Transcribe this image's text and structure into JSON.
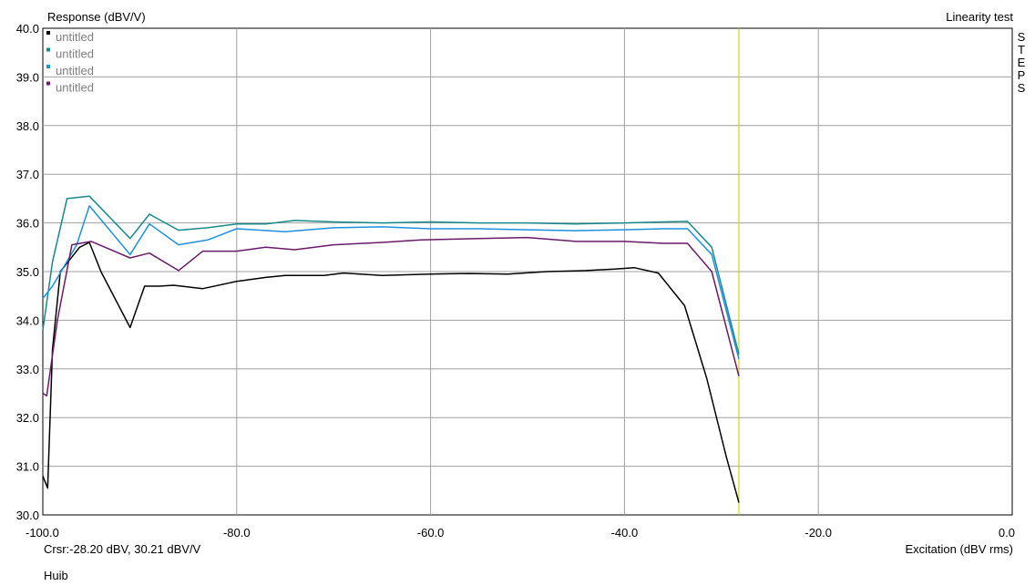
{
  "chart_data": {
    "type": "line",
    "title": "Linearity test",
    "ylabel": "Response (dBV/V)",
    "xlabel": "Excitation (dBV rms)",
    "side_label": "STEPS",
    "cursor_readout": "Crsr:-28.20 dBV, 30.21 dBV/V",
    "author": "Huib",
    "xlim": [
      -100,
      0
    ],
    "ylim": [
      30,
      40
    ],
    "x_ticks": [
      "-100.0",
      "-80.0",
      "-60.0",
      "-40.0",
      "-20.0",
      "0.0"
    ],
    "x_tick_values": [
      -100,
      -80,
      -60,
      -40,
      -20,
      0
    ],
    "y_ticks": [
      "30.0",
      "31.0",
      "32.0",
      "33.0",
      "34.0",
      "35.0",
      "36.0",
      "37.0",
      "38.0",
      "39.0",
      "40.0"
    ],
    "y_tick_values": [
      30,
      31,
      32,
      33,
      34,
      35,
      36,
      37,
      38,
      39,
      40
    ],
    "grid": true,
    "legend_position": "top-left",
    "cursor_x": -28.2,
    "colors": {
      "background": "#ffffff",
      "grid": "#a0a0a0",
      "cursor": "#c8c800",
      "legend_text": "#808080"
    },
    "series": [
      {
        "name": "untitled",
        "color": "#000000",
        "points": [
          [
            -100,
            30.8
          ],
          [
            -99.5,
            30.55
          ],
          [
            -99,
            33.4
          ],
          [
            -98.2,
            35.0
          ],
          [
            -96.2,
            35.5
          ],
          [
            -95.2,
            35.6
          ],
          [
            -94,
            35.0
          ],
          [
            -91,
            33.85
          ],
          [
            -89.5,
            34.7
          ],
          [
            -88,
            34.7
          ],
          [
            -86.5,
            34.72
          ],
          [
            -83.5,
            34.65
          ],
          [
            -80,
            34.8
          ],
          [
            -77,
            34.88
          ],
          [
            -75,
            34.92
          ],
          [
            -71,
            34.92
          ],
          [
            -69,
            34.97
          ],
          [
            -65,
            34.92
          ],
          [
            -60,
            34.95
          ],
          [
            -56,
            34.96
          ],
          [
            -52,
            34.95
          ],
          [
            -48,
            35.0
          ],
          [
            -44,
            35.02
          ],
          [
            -41,
            35.05
          ],
          [
            -39,
            35.08
          ],
          [
            -36.5,
            34.97
          ],
          [
            -33.8,
            34.3
          ],
          [
            -31.5,
            32.8
          ],
          [
            -29.5,
            31.2
          ],
          [
            -28.2,
            30.25
          ]
        ]
      },
      {
        "name": "untitled",
        "color": "#168a8a",
        "points": [
          [
            -100,
            33.8
          ],
          [
            -99,
            35.2
          ],
          [
            -97.5,
            36.5
          ],
          [
            -95.2,
            36.55
          ],
          [
            -91,
            35.68
          ],
          [
            -89,
            36.18
          ],
          [
            -86,
            35.85
          ],
          [
            -83,
            35.9
          ],
          [
            -80,
            35.98
          ],
          [
            -77,
            35.98
          ],
          [
            -74,
            36.05
          ],
          [
            -70,
            36.02
          ],
          [
            -65,
            36.0
          ],
          [
            -60,
            36.02
          ],
          [
            -55,
            36.0
          ],
          [
            -50,
            36.0
          ],
          [
            -45,
            35.98
          ],
          [
            -40,
            36.0
          ],
          [
            -36,
            36.02
          ],
          [
            -33.5,
            36.03
          ],
          [
            -31,
            35.5
          ],
          [
            -28.2,
            33.3
          ]
        ]
      },
      {
        "name": "untitled",
        "color": "#1e90e0",
        "points": [
          [
            -100,
            34.45
          ],
          [
            -99,
            34.7
          ],
          [
            -96.5,
            35.55
          ],
          [
            -95.2,
            36.35
          ],
          [
            -91,
            35.35
          ],
          [
            -89,
            35.98
          ],
          [
            -86,
            35.55
          ],
          [
            -83,
            35.65
          ],
          [
            -80,
            35.88
          ],
          [
            -75,
            35.82
          ],
          [
            -70,
            35.9
          ],
          [
            -65,
            35.92
          ],
          [
            -60,
            35.88
          ],
          [
            -55,
            35.88
          ],
          [
            -50,
            35.86
          ],
          [
            -45,
            35.84
          ],
          [
            -40,
            35.86
          ],
          [
            -36,
            35.88
          ],
          [
            -33.5,
            35.88
          ],
          [
            -31,
            35.35
          ],
          [
            -28.2,
            33.2
          ]
        ]
      },
      {
        "name": "untitled",
        "color": "#6a1a6a",
        "points": [
          [
            -100,
            32.5
          ],
          [
            -99.6,
            32.45
          ],
          [
            -98.5,
            34.0
          ],
          [
            -97,
            35.55
          ],
          [
            -95,
            35.62
          ],
          [
            -91,
            35.28
          ],
          [
            -89,
            35.38
          ],
          [
            -86,
            35.02
          ],
          [
            -83.5,
            35.42
          ],
          [
            -80,
            35.42
          ],
          [
            -77,
            35.5
          ],
          [
            -74,
            35.45
          ],
          [
            -70,
            35.55
          ],
          [
            -65,
            35.6
          ],
          [
            -61,
            35.65
          ],
          [
            -55,
            35.68
          ],
          [
            -50,
            35.7
          ],
          [
            -45,
            35.62
          ],
          [
            -40,
            35.62
          ],
          [
            -36,
            35.58
          ],
          [
            -33.5,
            35.58
          ],
          [
            -31,
            35.0
          ],
          [
            -28.2,
            32.85
          ]
        ]
      }
    ]
  }
}
